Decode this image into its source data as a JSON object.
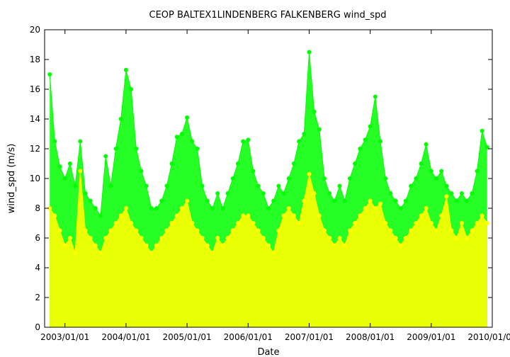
{
  "chart_data": {
    "type": "scatter",
    "title": "CEOP BALTEX1LINDENBERG FALKENBERG  wind_spd",
    "xlabel": "Date",
    "ylabel": "wind_spd (m/s)",
    "xlim": [
      "2002/09/01",
      "2010/01/01"
    ],
    "ylim": [
      0,
      20
    ],
    "yticks": [
      0,
      2,
      4,
      6,
      8,
      10,
      12,
      14,
      16,
      18,
      20
    ],
    "xticks": [
      "2003/01/01",
      "2004/01/01",
      "2005/01/01",
      "2006/01/01",
      "2007/01/01",
      "2008/01/01",
      "2009/01/01",
      "2010/01/01"
    ],
    "grid": false,
    "legend": "none",
    "series": [
      {
        "color": "#00ff00",
        "style": "points-with-lines",
        "x": [
          "2002/10",
          "2002/11",
          "2002/12",
          "2003/01",
          "2003/02",
          "2003/03",
          "2003/04",
          "2003/05",
          "2003/06",
          "2003/07",
          "2003/08",
          "2003/09",
          "2003/10",
          "2003/11",
          "2003/12",
          "2004/01",
          "2004/02",
          "2004/03",
          "2004/04",
          "2004/05",
          "2004/06",
          "2004/07",
          "2004/08",
          "2004/09",
          "2004/10",
          "2004/11",
          "2004/12",
          "2005/01",
          "2005/02",
          "2005/03",
          "2005/04",
          "2005/05",
          "2005/06",
          "2005/07",
          "2005/08",
          "2005/09",
          "2005/10",
          "2005/11",
          "2005/12",
          "2006/01",
          "2006/02",
          "2006/03",
          "2006/04",
          "2006/05",
          "2006/06",
          "2006/07",
          "2006/08",
          "2006/09",
          "2006/10",
          "2006/11",
          "2006/12",
          "2007/01",
          "2007/02",
          "2007/03",
          "2007/04",
          "2007/05",
          "2007/06",
          "2007/07",
          "2007/08",
          "2007/09",
          "2007/10",
          "2007/11",
          "2007/12",
          "2008/01",
          "2008/02",
          "2008/03",
          "2008/04",
          "2008/05",
          "2008/06",
          "2008/07",
          "2008/08",
          "2008/09",
          "2008/10",
          "2008/11",
          "2008/12",
          "2009/01",
          "2009/02",
          "2009/03",
          "2009/04",
          "2009/05",
          "2009/06",
          "2009/07",
          "2009/08",
          "2009/09",
          "2009/10",
          "2009/11",
          "2009/12"
        ],
        "values": [
          17.0,
          12.5,
          10.8,
          10.0,
          11.0,
          9.5,
          12.5,
          9.0,
          8.5,
          8.0,
          7.5,
          11.5,
          9.5,
          12.0,
          14.0,
          17.3,
          16.0,
          12.0,
          10.5,
          9.5,
          8.0,
          8.0,
          8.5,
          9.5,
          11.0,
          12.8,
          13.0,
          14.1,
          12.5,
          12.0,
          9.5,
          8.5,
          8.0,
          9.0,
          8.0,
          9.0,
          10.0,
          11.0,
          12.5,
          12.6,
          10.5,
          9.5,
          9.0,
          8.0,
          8.5,
          9.5,
          9.0,
          10.0,
          11.0,
          12.5,
          13.0,
          18.5,
          14.5,
          13.3,
          10.0,
          9.0,
          8.5,
          9.5,
          8.5,
          10.0,
          11.0,
          12.0,
          12.6,
          13.5,
          15.5,
          12.5,
          10.0,
          9.0,
          8.5,
          8.0,
          8.5,
          9.5,
          10.0,
          11.0,
          12.3,
          10.5,
          10.0,
          10.5,
          9.5,
          9.0,
          8.5,
          9.0,
          8.5,
          9.0,
          10.5,
          13.2,
          12.1
        ]
      },
      {
        "color": "#ffff00",
        "style": "points-with-lines",
        "x": [
          "2002/10",
          "2002/11",
          "2002/12",
          "2003/01",
          "2003/02",
          "2003/03",
          "2003/04",
          "2003/05",
          "2003/06",
          "2003/07",
          "2003/08",
          "2003/09",
          "2003/10",
          "2003/11",
          "2003/12",
          "2004/01",
          "2004/02",
          "2004/03",
          "2004/04",
          "2004/05",
          "2004/06",
          "2004/07",
          "2004/08",
          "2004/09",
          "2004/10",
          "2004/11",
          "2004/12",
          "2005/01",
          "2005/02",
          "2005/03",
          "2005/04",
          "2005/05",
          "2005/06",
          "2005/07",
          "2005/08",
          "2005/09",
          "2005/10",
          "2005/11",
          "2005/12",
          "2006/01",
          "2006/02",
          "2006/03",
          "2006/04",
          "2006/05",
          "2006/06",
          "2006/07",
          "2006/08",
          "2006/09",
          "2006/10",
          "2006/11",
          "2006/12",
          "2007/01",
          "2007/02",
          "2007/03",
          "2007/04",
          "2007/05",
          "2007/06",
          "2007/07",
          "2007/08",
          "2007/09",
          "2007/10",
          "2007/11",
          "2007/12",
          "2008/01",
          "2008/02",
          "2008/03",
          "2008/04",
          "2008/05",
          "2008/06",
          "2008/07",
          "2008/08",
          "2008/09",
          "2008/10",
          "2008/11",
          "2008/12",
          "2009/01",
          "2009/02",
          "2009/03",
          "2009/04",
          "2009/05",
          "2009/06",
          "2009/07",
          "2009/08",
          "2009/09",
          "2009/10",
          "2009/11",
          "2009/12"
        ],
        "values": [
          8.0,
          7.5,
          6.5,
          5.5,
          6.0,
          5.0,
          10.5,
          6.5,
          6.0,
          5.5,
          5.0,
          6.0,
          6.5,
          7.0,
          7.5,
          8.0,
          7.0,
          6.5,
          6.0,
          5.5,
          5.0,
          5.5,
          6.0,
          6.5,
          7.0,
          7.5,
          8.0,
          8.5,
          7.0,
          6.5,
          6.0,
          5.5,
          5.0,
          6.0,
          5.5,
          6.0,
          6.5,
          7.0,
          7.5,
          7.5,
          7.0,
          6.5,
          6.0,
          5.5,
          5.0,
          6.5,
          7.5,
          8.0,
          7.5,
          7.0,
          8.5,
          10.3,
          9.0,
          7.5,
          6.5,
          6.0,
          5.5,
          6.0,
          5.5,
          6.5,
          7.0,
          7.5,
          8.0,
          8.5,
          8.0,
          8.3,
          7.0,
          6.5,
          6.0,
          5.5,
          6.0,
          6.5,
          7.0,
          7.5,
          8.0,
          7.0,
          6.5,
          7.5,
          8.8,
          6.5,
          6.0,
          7.0,
          6.0,
          6.5,
          7.0,
          7.5,
          7.0
        ]
      }
    ]
  }
}
